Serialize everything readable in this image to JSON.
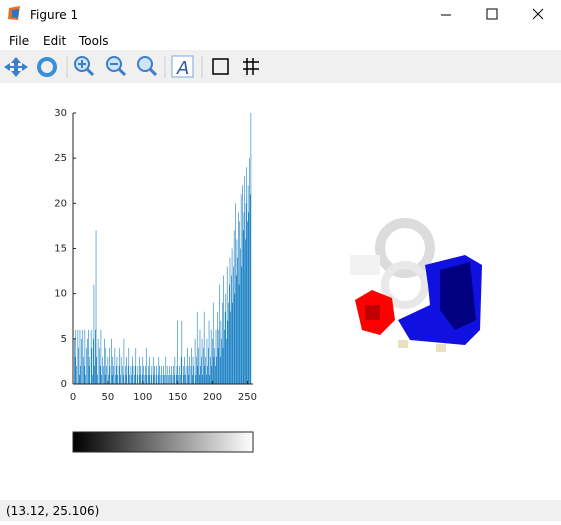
{
  "window": {
    "title": "Figure 1"
  },
  "menu": [
    "File",
    "Edit",
    "Tools"
  ],
  "status": "(13.12, 25.106)",
  "chart_data": {
    "type": "bar",
    "color": "#0072bd",
    "xlim": [
      0,
      258
    ],
    "xticks": [
      0,
      50,
      100,
      150,
      200,
      250
    ],
    "ylim": [
      0,
      30
    ],
    "yticks": [
      0,
      5,
      10,
      15,
      20,
      25,
      30
    ],
    "x": [
      0,
      1,
      2,
      3,
      4,
      5,
      6,
      7,
      8,
      9,
      10,
      11,
      12,
      13,
      14,
      15,
      16,
      17,
      18,
      19,
      20,
      21,
      22,
      23,
      24,
      25,
      26,
      27,
      28,
      29,
      30,
      31,
      32,
      33,
      34,
      35,
      36,
      37,
      38,
      39,
      40,
      41,
      42,
      43,
      44,
      45,
      46,
      47,
      48,
      49,
      50,
      51,
      52,
      53,
      54,
      55,
      56,
      57,
      58,
      59,
      60,
      61,
      62,
      63,
      64,
      65,
      66,
      67,
      68,
      69,
      70,
      71,
      72,
      73,
      74,
      75,
      76,
      77,
      78,
      79,
      80,
      81,
      82,
      83,
      84,
      85,
      86,
      87,
      88,
      89,
      90,
      91,
      92,
      93,
      94,
      95,
      96,
      97,
      98,
      99,
      100,
      101,
      102,
      103,
      104,
      105,
      106,
      107,
      108,
      109,
      110,
      111,
      112,
      113,
      114,
      115,
      116,
      117,
      118,
      119,
      120,
      121,
      122,
      123,
      124,
      125,
      126,
      127,
      128,
      129,
      130,
      131,
      132,
      133,
      134,
      135,
      136,
      137,
      138,
      139,
      140,
      141,
      142,
      143,
      144,
      145,
      146,
      147,
      148,
      149,
      150,
      151,
      152,
      153,
      154,
      155,
      156,
      157,
      158,
      159,
      160,
      161,
      162,
      163,
      164,
      165,
      166,
      167,
      168,
      169,
      170,
      171,
      172,
      173,
      174,
      175,
      176,
      177,
      178,
      179,
      180,
      181,
      182,
      183,
      184,
      185,
      186,
      187,
      188,
      189,
      190,
      191,
      192,
      193,
      194,
      195,
      196,
      197,
      198,
      199,
      200,
      201,
      202,
      203,
      204,
      205,
      206,
      207,
      208,
      209,
      210,
      211,
      212,
      213,
      214,
      215,
      216,
      217,
      218,
      219,
      220,
      221,
      222,
      223,
      224,
      225,
      226,
      227,
      228,
      229,
      230,
      231,
      232,
      233,
      234,
      235,
      236,
      237,
      238,
      239,
      240,
      241,
      242,
      243,
      244,
      245,
      246,
      247,
      248,
      249,
      250,
      251,
      252,
      253,
      254,
      255
    ],
    "values": [
      6,
      0,
      5,
      3,
      6,
      2,
      0,
      6,
      4,
      1,
      6,
      2,
      5,
      0,
      6,
      3,
      2,
      6,
      1,
      4,
      0,
      5,
      6,
      2,
      3,
      0,
      6,
      4,
      1,
      5,
      11,
      2,
      6,
      17,
      3,
      1,
      5,
      0,
      4,
      2,
      6,
      1,
      3,
      0,
      2,
      5,
      1,
      4,
      2,
      0,
      3,
      1,
      4,
      2,
      0,
      5,
      1,
      3,
      2,
      0,
      4,
      1,
      2,
      3,
      1,
      0,
      2,
      4,
      1,
      3,
      0,
      2,
      1,
      5,
      0,
      2,
      1,
      3,
      0,
      2,
      4,
      1,
      0,
      2,
      1,
      3,
      2,
      0,
      1,
      2,
      4,
      0,
      1,
      2,
      0,
      3,
      1,
      2,
      0,
      1,
      3,
      2,
      0,
      1,
      2,
      4,
      1,
      0,
      2,
      1,
      3,
      0,
      1,
      2,
      0,
      3,
      1,
      2,
      0,
      1,
      2,
      0,
      1,
      3,
      2,
      0,
      1,
      2,
      0,
      1,
      2,
      1,
      0,
      3,
      1,
      2,
      0,
      1,
      2,
      0,
      1,
      2,
      1,
      0,
      2,
      1,
      3,
      0,
      1,
      2,
      7,
      1,
      0,
      2,
      1,
      3,
      7,
      0,
      2,
      1,
      3,
      1,
      2,
      0,
      4,
      2,
      1,
      3,
      0,
      2,
      4,
      1,
      3,
      2,
      0,
      5,
      1,
      3,
      8,
      2,
      4,
      1,
      6,
      2,
      3,
      5,
      1,
      4,
      8,
      2,
      3,
      1,
      5,
      2,
      4,
      7,
      1,
      3,
      6,
      2,
      5,
      9,
      3,
      4,
      2,
      6,
      3,
      8,
      4,
      6,
      11,
      3,
      7,
      5,
      9,
      4,
      12,
      6,
      8,
      10,
      5,
      13,
      7,
      9,
      11,
      14,
      8,
      12,
      15,
      9,
      13,
      17,
      10,
      20,
      12,
      16,
      14,
      19,
      11,
      18,
      15,
      21,
      13,
      22,
      17,
      19,
      23,
      16,
      20,
      24,
      18,
      22,
      19,
      25,
      21,
      30
    ]
  }
}
